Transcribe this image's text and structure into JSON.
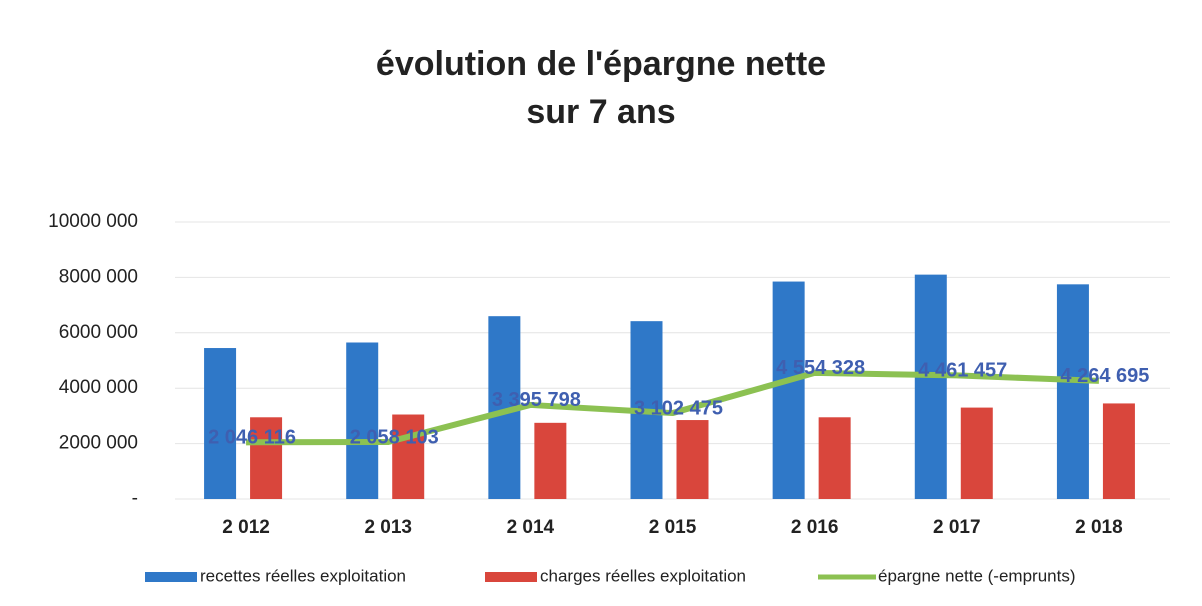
{
  "chart_data": {
    "type": "bar",
    "title": "évolution de l'épargne nette",
    "subtitle": "sur 7 ans",
    "categories": [
      "2 012",
      "2 013",
      "2 014",
      "2 015",
      "2 016",
      "2 017",
      "2 018"
    ],
    "series": [
      {
        "name": "recettes  réelles exploitation",
        "type": "bar",
        "color": "#2f78c8",
        "values": [
          5450000,
          5650000,
          6600000,
          6420000,
          7850000,
          8100000,
          7750000
        ]
      },
      {
        "name": "charges réelles exploitation",
        "type": "bar",
        "color": "#d9463c",
        "values": [
          2950000,
          3050000,
          2750000,
          2850000,
          2950000,
          3300000,
          3450000
        ]
      },
      {
        "name": "épargne nette (-emprunts)",
        "type": "line",
        "color": "#8cc152",
        "values": [
          2046116,
          2058103,
          3395798,
          3102475,
          4554328,
          4461457,
          4264695
        ],
        "value_labels": [
          "2 046 116",
          "2 058 103",
          "3 395 798",
          "3 102 475",
          "4 554 328",
          "4 461 457",
          "4 264 695"
        ]
      }
    ],
    "ylim": [
      0,
      10000000
    ],
    "yticks": [
      {
        "value": 0,
        "label": "-"
      },
      {
        "value": 2000000,
        "label": "2000 000"
      },
      {
        "value": 4000000,
        "label": "4000 000"
      },
      {
        "value": 6000000,
        "label": "6000 000"
      },
      {
        "value": 8000000,
        "label": "8000 000"
      },
      {
        "value": 10000000,
        "label": "10000 000"
      }
    ],
    "grid": true
  }
}
